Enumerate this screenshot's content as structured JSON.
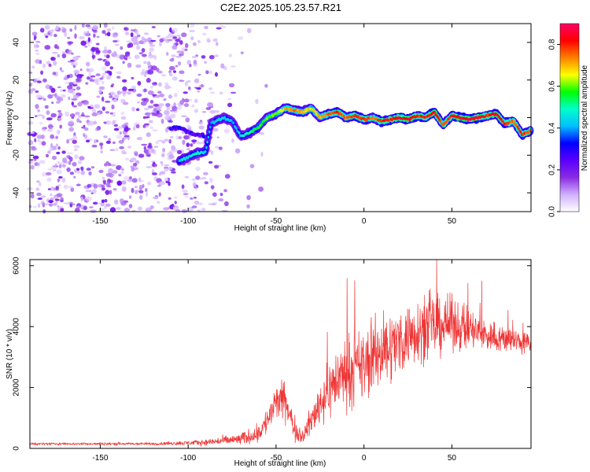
{
  "title": "C2E2.2025.105.23.57.R21",
  "chart_data": [
    {
      "type": "heatmap",
      "name": "spectrogram",
      "xlabel": "Height of straight line (km)",
      "ylabel": "Frequency (Hz)",
      "xlim": [
        -190,
        95
      ],
      "ylim": [
        -50,
        50
      ],
      "xticks": [
        -150,
        -100,
        -50,
        0,
        50
      ],
      "xtick_labels": [
        "-150",
        "-100",
        "-50",
        "0",
        "50"
      ],
      "yticks": [
        -40,
        -20,
        0,
        20,
        40
      ],
      "ytick_labels": [
        "-40",
        "-20",
        "0",
        "20",
        "40"
      ],
      "colorbar": {
        "label": "Normalized spectral amplitude",
        "range": [
          0.0,
          0.9
        ],
        "ticks": [
          0.0,
          0.2,
          0.4,
          0.6,
          0.8
        ],
        "tick_labels": [
          "0.0",
          "0.2",
          "0.4",
          "0.6",
          "0.8"
        ],
        "colors": [
          "#ffffff",
          "#d0b0ff",
          "#8a2be2",
          "#5a00ff",
          "#0000ff",
          "#00bfff",
          "#00ffcc",
          "#00ff00",
          "#ffff00",
          "#ff8000",
          "#ff0000",
          "#ff0066"
        ]
      },
      "noise_region_x": [
        -190,
        -75
      ],
      "ridge": {
        "x": [
          -105,
          -100,
          -95,
          -90,
          -87,
          -80,
          -75,
          -70,
          -65,
          -60,
          -55,
          -50,
          -45,
          -40,
          -35,
          -30,
          -25,
          -20,
          -15,
          -10,
          -5,
          0,
          5,
          10,
          15,
          20,
          25,
          30,
          35,
          40,
          45,
          50,
          55,
          60,
          65,
          70,
          75,
          80,
          85,
          90,
          95
        ],
        "freq": [
          -23,
          -21,
          -19,
          -18,
          -3,
          0,
          -2,
          -10,
          -8,
          -5,
          0,
          2,
          5,
          4,
          3,
          5,
          0,
          2,
          3,
          0,
          1,
          -1,
          0,
          -2,
          -1,
          0,
          -1,
          1,
          0,
          3,
          -4,
          1,
          0,
          -1,
          0,
          1,
          2,
          -3,
          -2,
          -9,
          -7
        ],
        "amp": [
          0.45,
          0.45,
          0.5,
          0.45,
          0.4,
          0.45,
          0.4,
          0.45,
          0.5,
          0.55,
          0.6,
          0.6,
          0.7,
          0.75,
          0.7,
          0.65,
          0.7,
          0.75,
          0.8,
          0.75,
          0.8,
          0.8,
          0.75,
          0.8,
          0.8,
          0.85,
          0.85,
          0.8,
          0.8,
          0.85,
          0.75,
          0.8,
          0.85,
          0.85,
          0.85,
          0.8,
          0.85,
          0.8,
          0.75,
          0.8,
          0.75
        ]
      },
      "secondary_ridge": {
        "x": [
          -110,
          -105,
          -100,
          -95,
          -90
        ],
        "freq": [
          -6,
          -5,
          -8,
          -9,
          -10
        ]
      }
    },
    {
      "type": "line",
      "name": "snr",
      "color": "#ee3333",
      "xlabel": "Height of straight line (km)",
      "ylabel": "SNR (10 * v/v)",
      "xlim": [
        -190,
        95
      ],
      "ylim": [
        0,
        6200
      ],
      "xticks": [
        -150,
        -100,
        -50,
        0,
        50
      ],
      "xtick_labels": [
        "-150",
        "-100",
        "-50",
        "0",
        "50"
      ],
      "yticks": [
        0,
        2000,
        4000,
        6000
      ],
      "ytick_labels": [
        "0",
        "2000",
        "4000",
        "6000"
      ],
      "envelope": {
        "x": [
          -190,
          -170,
          -150,
          -120,
          -100,
          -90,
          -80,
          -70,
          -60,
          -55,
          -50,
          -45,
          -40,
          -35,
          -30,
          -25,
          -20,
          -15,
          -10,
          -5,
          0,
          5,
          10,
          20,
          30,
          40,
          50,
          60,
          70,
          80,
          90,
          95
        ],
        "mean": [
          150,
          150,
          150,
          150,
          180,
          200,
          250,
          300,
          500,
          900,
          1500,
          1600,
          700,
          400,
          900,
          1500,
          1900,
          2300,
          2500,
          2600,
          2700,
          3000,
          3200,
          3500,
          3900,
          4000,
          4100,
          3900,
          3700,
          3600,
          3500,
          3400
        ],
        "spread": [
          80,
          80,
          80,
          90,
          150,
          200,
          300,
          400,
          600,
          900,
          1200,
          1200,
          800,
          500,
          900,
          1500,
          1800,
          2100,
          2200,
          2300,
          2400,
          2300,
          2300,
          2200,
          2100,
          2000,
          1700,
          1400,
          1100,
          900,
          800,
          700
        ]
      }
    }
  ]
}
